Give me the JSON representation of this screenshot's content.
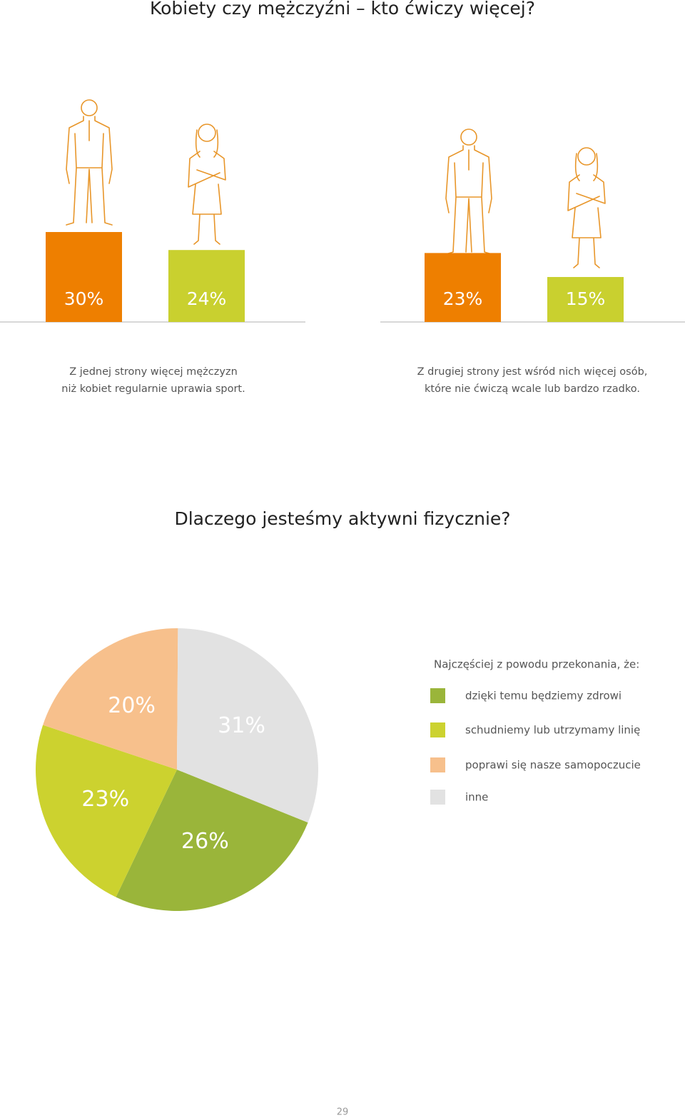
{
  "page_title": "Kobiety czy mężczyźni – kto ćwiczy więcej?",
  "page_number": "29",
  "chart_data": [
    {
      "type": "bar",
      "categories": [
        null,
        null
      ],
      "values": [
        30,
        24
      ],
      "value_labels": [
        "30%",
        "24%"
      ],
      "colors": [
        "#ee7f00",
        "#c9d02f"
      ],
      "caption": [
        "Z jednej strony więcej mężczyzn",
        "niż kobiet regularnie uprawia sport."
      ]
    },
    {
      "type": "bar",
      "categories": [
        null,
        null
      ],
      "values": [
        23,
        15
      ],
      "value_labels": [
        "23%",
        "15%"
      ],
      "colors": [
        "#ee7f00",
        "#c9d02f"
      ],
      "caption": [
        "Z drugiej strony jest wśród nich więcej osób,",
        "które nie ćwiczą wcale lub bardzo rzadko."
      ]
    },
    {
      "type": "pie",
      "title": "Dlaczego jesteśmy aktywni fizycznie?",
      "legend_title": "Najczęściej z powodu przekonania, że:",
      "categories": [
        "dzięki temu będziemy zdrowi",
        "schudniemy lub utrzymamy linię",
        "poprawi się nasze samopoczucie",
        "inne"
      ],
      "values": [
        26,
        23,
        20,
        31
      ],
      "value_labels": [
        "26%",
        "23%",
        "20%",
        "31%"
      ],
      "colors": [
        "#9ab53a",
        "#ccd22f",
        "#f7c08c",
        "#e2e2e2"
      ]
    }
  ]
}
